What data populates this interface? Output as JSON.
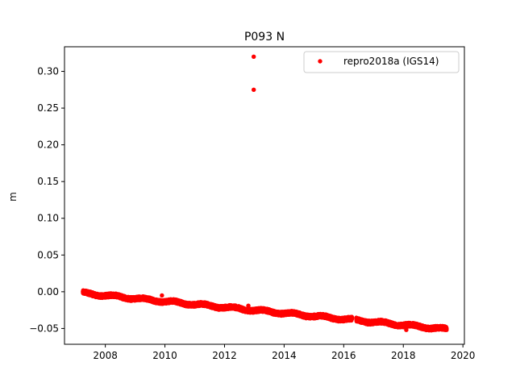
{
  "chart_data": {
    "type": "scatter",
    "title": "P093 N",
    "xlabel": "",
    "ylabel": "m",
    "xlim": [
      2006.63,
      2020.05
    ],
    "ylim": [
      -0.0715,
      0.3335
    ],
    "x_ticks": [
      2008,
      2010,
      2012,
      2014,
      2016,
      2018,
      2020
    ],
    "x_tick_labels": [
      "2008",
      "2010",
      "2012",
      "2014",
      "2016",
      "2018",
      "2020"
    ],
    "y_ticks": [
      -0.05,
      0.0,
      0.05,
      0.1,
      0.15,
      0.2,
      0.25,
      0.3
    ],
    "y_tick_labels": [
      "−0.05",
      "0.00",
      "0.05",
      "0.10",
      "0.15",
      "0.20",
      "0.25",
      "0.30"
    ],
    "grid": false,
    "legend": {
      "position": "top-right",
      "entries": [
        "repro2018a (IGS14)"
      ]
    },
    "series": [
      {
        "name": "repro2018a (IGS14)",
        "color": "#ff0000",
        "marker": "circle",
        "trend": {
          "x_start": 2007.25,
          "x_end": 2019.45,
          "y_start": -0.002,
          "y_end": -0.051
        },
        "density_per_year": 365,
        "gap": [
          2016.28,
          2016.42
        ],
        "highlighted_points": [
          {
            "x": 2007.3,
            "y": 0.001
          },
          {
            "x": 2007.6,
            "y": -0.005
          },
          {
            "x": 2008.0,
            "y": -0.003
          },
          {
            "x": 2009.9,
            "y": -0.005
          },
          {
            "x": 2012.8,
            "y": -0.019
          },
          {
            "x": 2012.95,
            "y": -0.028
          },
          {
            "x": 2017.3,
            "y": -0.043
          },
          {
            "x": 2018.1,
            "y": -0.052
          },
          {
            "x": 2019.45,
            "y": -0.052
          }
        ],
        "outliers": [
          {
            "x": 2012.98,
            "y": 0.32
          },
          {
            "x": 2012.98,
            "y": 0.275
          }
        ]
      }
    ]
  }
}
